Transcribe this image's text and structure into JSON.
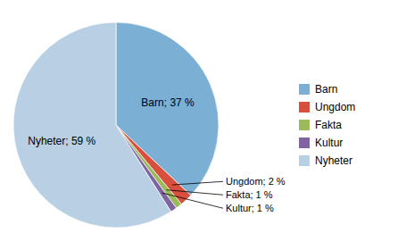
{
  "chart_data": {
    "type": "pie",
    "categories": [
      "Barn",
      "Ungdom",
      "Fakta",
      "Kultur",
      "Nyheter"
    ],
    "values": [
      37,
      2,
      1,
      1,
      59
    ],
    "value_labels": [
      "Barn; 37 %",
      "Ungdom; 2 %",
      "Fakta; 1 %",
      "Kultur; 1 %",
      "Nyheter; 59 %"
    ],
    "colors": [
      "#7bafd4",
      "#d94f3d",
      "#9bba59",
      "#8064a2",
      "#b8cfe4"
    ],
    "data_labels": true,
    "legend": "right"
  }
}
